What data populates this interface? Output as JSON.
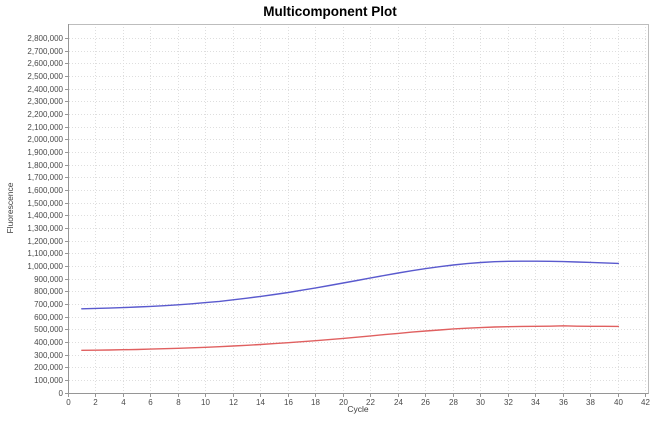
{
  "page": {
    "background": "#ffffff"
  },
  "chart_data": {
    "type": "line",
    "title": "Multicomponent Plot",
    "xlabel": "Cycle",
    "ylabel": "Fluorescence",
    "grid": true,
    "legend_position": "none",
    "xlim": [
      0,
      42.15
    ],
    "ylim": [
      0,
      2915000
    ],
    "x_ticks": [
      0,
      2,
      4,
      6,
      8,
      10,
      12,
      14,
      16,
      18,
      20,
      22,
      24,
      26,
      28,
      30,
      32,
      34,
      36,
      38,
      40,
      42
    ],
    "y_tick_step": 100000,
    "y_tick_max": 2800000,
    "x": [
      1,
      2,
      3,
      4,
      5,
      6,
      7,
      8,
      9,
      10,
      11,
      12,
      13,
      14,
      15,
      16,
      17,
      18,
      19,
      20,
      21,
      22,
      23,
      24,
      25,
      26,
      27,
      28,
      29,
      30,
      31,
      32,
      33,
      34,
      35,
      36,
      37,
      38,
      39,
      40
    ],
    "series": [
      {
        "name": "blue-series",
        "color": "#5a5ace",
        "values": [
          665000,
          668000,
          671000,
          675000,
          679000,
          684000,
          690000,
          697000,
          705000,
          714000,
          724000,
          736000,
          749000,
          763000,
          778000,
          794000,
          812000,
          830000,
          849000,
          869000,
          889000,
          909000,
          929000,
          948000,
          966000,
          983000,
          998000,
          1011000,
          1022000,
          1031000,
          1037000,
          1040000,
          1041000,
          1041000,
          1040000,
          1038000,
          1035000,
          1032000,
          1028000,
          1024000
        ]
      },
      {
        "name": "red-series",
        "color": "#e06060",
        "values": [
          337000,
          338000,
          340000,
          342000,
          344000,
          347000,
          350000,
          353000,
          357000,
          361000,
          366000,
          371000,
          377000,
          383000,
          390000,
          397000,
          405000,
          413000,
          422000,
          431000,
          441000,
          451000,
          461000,
          471000,
          481000,
          490000,
          498000,
          506000,
          512000,
          517000,
          521000,
          524000,
          526000,
          527000,
          528000,
          531000,
          528000,
          527000,
          527000,
          526000
        ]
      }
    ],
    "colors": {
      "grid": "#dedede",
      "frame": "#bdbdbd",
      "axis": "#969696",
      "tick_text": "#4a4a4a"
    }
  }
}
